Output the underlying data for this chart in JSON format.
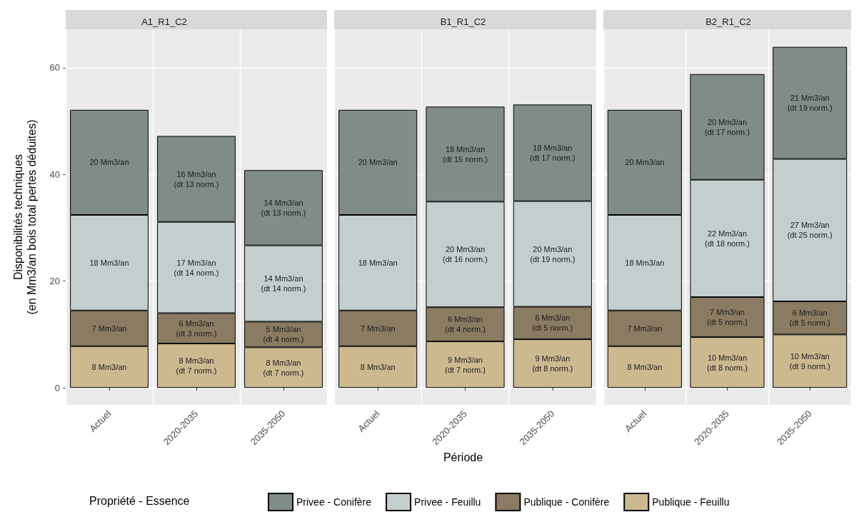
{
  "chart_data": [
    {
      "type": "bar",
      "title": "A1_R1_C2",
      "ylabel": "Disponibilités techniques\n(en Mm3/an bois total pertes déduites)",
      "legend_title": "Propriété - Essence",
      "legend": "bottom",
      "stacked": true,
      "grid": true,
      "categories": [
        "Actuel",
        "2020-2035",
        "2035-2050"
      ],
      "ylim": [
        -3.2,
        67.2
      ],
      "yticks": [
        0,
        20,
        40,
        60
      ],
      "series": [
        {
          "name": "Publique - Feuillu",
          "color": "#cdb990",
          "values": [
            7.8,
            8.3,
            7.6
          ],
          "value_labels": [
            "8 Mm3/an",
            "8 Mm3/an\n(dt 7 norm.)",
            "8 Mm3/an\n(dt 7 norm.)"
          ]
        },
        {
          "name": "Publique - Conifère",
          "color": "#8b7b62",
          "values": [
            6.7,
            5.7,
            4.8
          ],
          "value_labels": [
            "7 Mm3/an",
            "6 Mm3/an\n(dt 3 norm.)",
            "5 Mm3/an\n(dt 4 norm.)"
          ]
        },
        {
          "name": "Privee - Feuillu",
          "color": "#c3cfcf",
          "values": [
            17.9,
            17.1,
            14.3
          ],
          "value_labels": [
            "18 Mm3/an",
            "17 Mm3/an\n(dt 14 norm.)",
            "14 Mm3/an\n(dt 14 norm.)"
          ]
        },
        {
          "name": "Privee - Conifère",
          "color": "#7f8c8a",
          "values": [
            19.7,
            16.1,
            14.1
          ],
          "value_labels": [
            "20 Mm3/an",
            "16 Mm3/an\n(dt 13 norm.)",
            "14 Mm3/an\n(dt 13 norm.)"
          ]
        }
      ]
    },
    {
      "type": "bar",
      "title": "B1_R1_C2",
      "xlabel": "Période",
      "stacked": true,
      "grid": true,
      "tick_labels": "x",
      "categories": [
        "Actuel",
        "2020-2035",
        "2035-2050"
      ],
      "ylim": [
        -3.2,
        67.2
      ],
      "yticks": [
        0,
        20,
        40,
        60
      ],
      "series": [
        {
          "color": "#cdb990",
          "values": [
            7.8,
            8.7,
            9.1
          ],
          "value_labels": [
            "8 Mm3/an",
            "9 Mm3/an\n(dt 7 norm.)",
            "9 Mm3/an\n(dt 8 norm.)"
          ]
        },
        {
          "color": "#8b7b62",
          "values": [
            6.7,
            6.4,
            6.1
          ],
          "value_labels": [
            "7 Mm3/an",
            "6 Mm3/an\n(dt 4 norm.)",
            "6 Mm3/an\n(dt 5 norm.)"
          ]
        },
        {
          "color": "#c3cfcf",
          "values": [
            17.9,
            19.8,
            19.8
          ],
          "value_labels": [
            "18 Mm3/an",
            "20 Mm3/an\n(dt 16 norm.)",
            "20 Mm3/an\n(dt 19 norm.)"
          ]
        },
        {
          "color": "#7f8c8a",
          "values": [
            19.7,
            17.8,
            18.1
          ],
          "value_labels": [
            "20 Mm3/an",
            "18 Mm3/an\n(dt 15 norm.)",
            "18 Mm3/an\n(dt 17 norm.)"
          ]
        }
      ]
    },
    {
      "type": "bar",
      "title": "B2_R1_C2",
      "stacked": true,
      "grid": true,
      "tick_labels": "x",
      "categories": [
        "Actuel",
        "2020-2035",
        "2035-2050"
      ],
      "ylim": [
        -3.2,
        67.2
      ],
      "yticks": [
        0,
        20,
        40,
        60
      ],
      "series": [
        {
          "color": "#cdb990",
          "values": [
            7.8,
            9.5,
            10.0
          ],
          "value_labels": [
            "8 Mm3/an",
            "10 Mm3/an\n(dt 8 norm.)",
            "10 Mm3/an\n(dt 9 norm.)"
          ]
        },
        {
          "color": "#8b7b62",
          "values": [
            6.7,
            7.5,
            6.2
          ],
          "value_labels": [
            "7 Mm3/an",
            "7 Mm3/an\n(dt 5 norm.)",
            "6 Mm3/an\n(dt 5 norm.)"
          ]
        },
        {
          "color": "#c3cfcf",
          "values": [
            17.9,
            22.0,
            26.7
          ],
          "value_labels": [
            "18 Mm3/an",
            "22 Mm3/an\n(dt 18 norm.)",
            "27 Mm3/an\n(dt 25 norm.)"
          ]
        },
        {
          "color": "#7f8c8a",
          "values": [
            19.7,
            19.8,
            21.0
          ],
          "value_labels": [
            "20 Mm3/an",
            "20 Mm3/an\n(dt 17 norm.)",
            "21 Mm3/an\n(dt 19 norm.)"
          ]
        }
      ]
    }
  ]
}
